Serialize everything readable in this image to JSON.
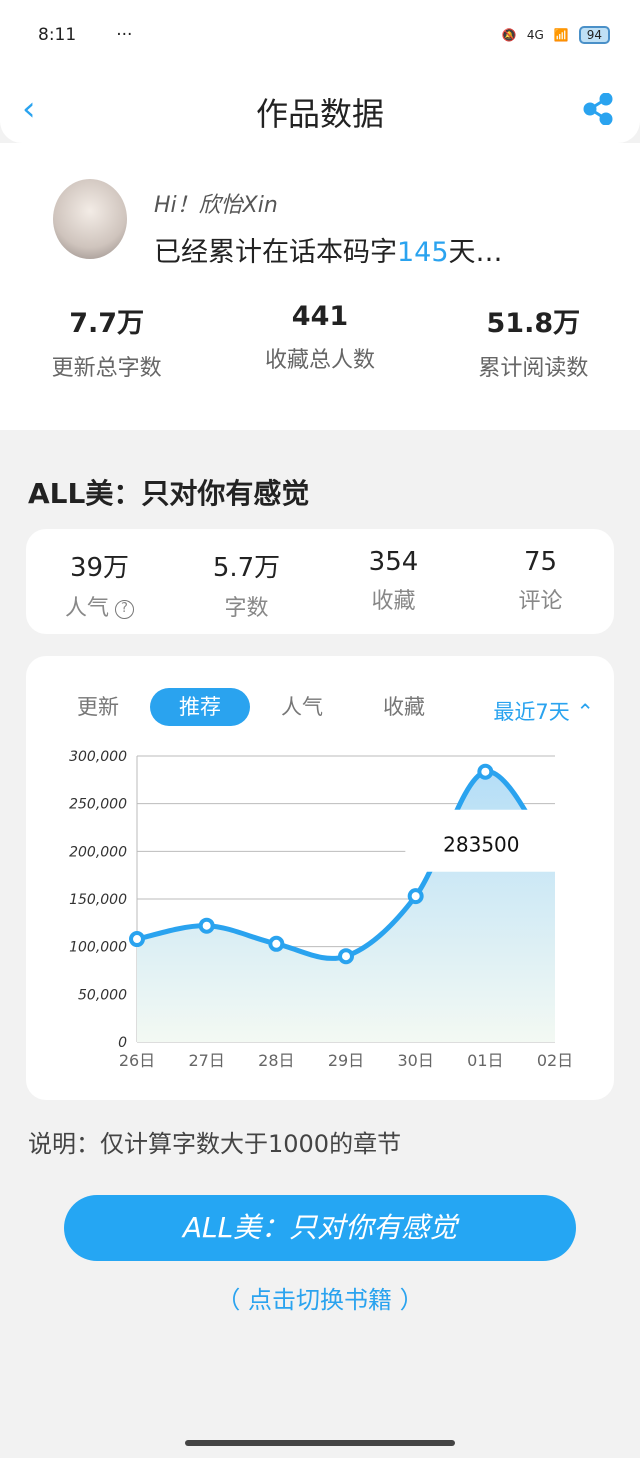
{
  "status": {
    "time": "8:11",
    "dots": "···",
    "network": "4G",
    "battery": "94"
  },
  "header": {
    "title": "作品数据",
    "back_icon": "chevron-left-icon",
    "share_icon": "share-icon"
  },
  "user": {
    "greeting": "Hi！欣怡Xin",
    "days_prefix": "已经累计在话本码字",
    "days": "145",
    "days_suffix": "天…"
  },
  "summary": [
    {
      "value": "7.7万",
      "label": "更新总字数"
    },
    {
      "value": "441",
      "label": "收藏总人数"
    },
    {
      "value": "51.8万",
      "label": "累计阅读数"
    }
  ],
  "book": {
    "title": "ALL美：只对你有感觉"
  },
  "book_stats": [
    {
      "value": "39万",
      "label": "人气"
    },
    {
      "value": "5.7万",
      "label": "字数"
    },
    {
      "value": "354",
      "label": "收藏"
    },
    {
      "value": "75",
      "label": "评论"
    }
  ],
  "tabs": [
    "更新",
    "推荐",
    "人气",
    "收藏"
  ],
  "active_tab": "推荐",
  "range": "最近7天",
  "accent": "#2aa3ef",
  "chart_data": {
    "type": "area",
    "categories": [
      "26日",
      "27日",
      "28日",
      "29日",
      "30日",
      "01日",
      "02日"
    ],
    "values": [
      108000,
      122000,
      103000,
      90000,
      153000,
      283500,
      188000
    ],
    "ylim": [
      0,
      300000
    ],
    "yticks": [
      "0",
      "50,000",
      "100,000",
      "150,000",
      "200,000",
      "250,000",
      "300,000"
    ],
    "tooltip": "283500",
    "grid": true
  },
  "note": "说明：仅计算字数大于1000的章节",
  "button": "ALL美：只对你有感觉",
  "switch": "（ 点击切换书籍 ）"
}
